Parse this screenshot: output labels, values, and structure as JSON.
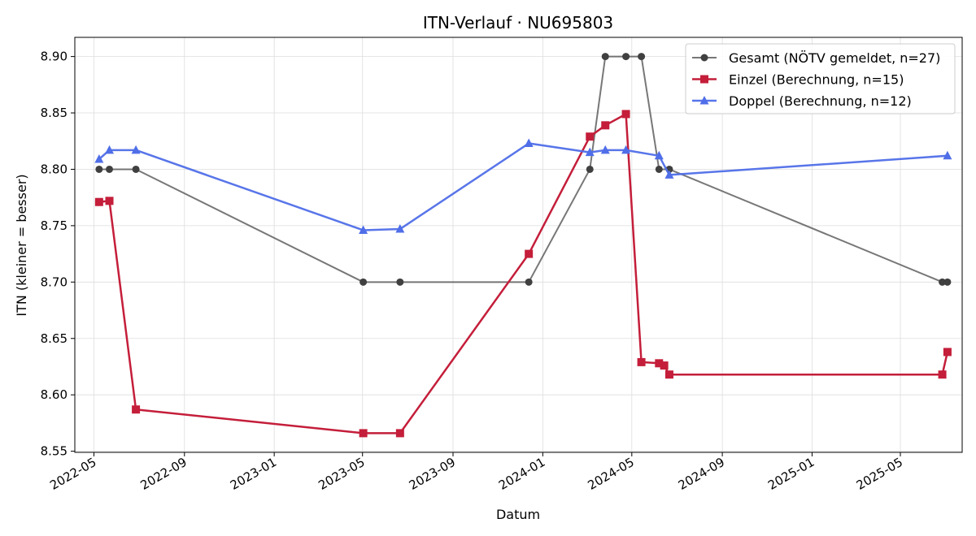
{
  "chart_data": {
    "type": "line",
    "title": "ITN-Verlauf · NU695803",
    "xlabel": "Datum",
    "ylabel": "ITN  (kleiner = besser)",
    "x_type": "date",
    "xlim": [
      "2022-04-05",
      "2025-07-24"
    ],
    "ylim": [
      8.549,
      8.917
    ],
    "grid": true,
    "legend_position": "top-right",
    "x_ticks": [
      "2022-05",
      "2022-09",
      "2023-01",
      "2023-05",
      "2023-09",
      "2024-01",
      "2024-05",
      "2024-09",
      "2025-01",
      "2025-05"
    ],
    "x_tick_dates": [
      "2022-05-01",
      "2022-09-01",
      "2023-01-01",
      "2023-05-01",
      "2023-09-01",
      "2024-01-01",
      "2024-05-01",
      "2024-09-01",
      "2025-01-01",
      "2025-05-01"
    ],
    "y_ticks": [
      "8.55",
      "8.60",
      "8.65",
      "8.70",
      "8.75",
      "8.80",
      "8.85",
      "8.90"
    ],
    "series": [
      {
        "name": "Gesamt (NÖTV gemeldet, n=27)",
        "color": "#555555",
        "marker": "circle",
        "points": [
          {
            "x": "2022-05-08",
            "y": 8.8
          },
          {
            "x": "2022-05-22",
            "y": 8.8
          },
          {
            "x": "2022-06-27",
            "y": 8.8
          },
          {
            "x": "2023-05-02",
            "y": 8.7
          },
          {
            "x": "2023-06-21",
            "y": 8.7
          },
          {
            "x": "2023-12-13",
            "y": 8.7
          },
          {
            "x": "2024-03-05",
            "y": 8.8
          },
          {
            "x": "2024-03-26",
            "y": 8.9
          },
          {
            "x": "2024-04-23",
            "y": 8.9
          },
          {
            "x": "2024-05-14",
            "y": 8.9
          },
          {
            "x": "2024-06-07",
            "y": 8.8
          },
          {
            "x": "2024-06-21",
            "y": 8.8
          },
          {
            "x": "2025-06-27",
            "y": 8.7
          },
          {
            "x": "2025-07-04",
            "y": 8.7
          }
        ]
      },
      {
        "name": "Einzel (Berechnung, n=15)",
        "color": "#c41e3a",
        "marker": "square",
        "points": [
          {
            "x": "2022-05-08",
            "y": 8.771
          },
          {
            "x": "2022-05-22",
            "y": 8.772
          },
          {
            "x": "2022-06-27",
            "y": 8.587
          },
          {
            "x": "2023-05-02",
            "y": 8.566
          },
          {
            "x": "2023-06-21",
            "y": 8.566
          },
          {
            "x": "2023-12-13",
            "y": 8.725
          },
          {
            "x": "2024-03-05",
            "y": 8.829
          },
          {
            "x": "2024-03-26",
            "y": 8.839
          },
          {
            "x": "2024-04-23",
            "y": 8.849
          },
          {
            "x": "2024-05-14",
            "y": 8.629
          },
          {
            "x": "2024-06-07",
            "y": 8.628
          },
          {
            "x": "2024-06-14",
            "y": 8.626
          },
          {
            "x": "2024-06-21",
            "y": 8.618
          },
          {
            "x": "2025-06-27",
            "y": 8.618
          },
          {
            "x": "2025-07-04",
            "y": 8.638
          }
        ]
      },
      {
        "name": "Doppel (Berechnung, n=12)",
        "color": "#4f6ee8",
        "marker": "triangle",
        "points": [
          {
            "x": "2022-05-08",
            "y": 8.809
          },
          {
            "x": "2022-05-22",
            "y": 8.817
          },
          {
            "x": "2022-06-27",
            "y": 8.817
          },
          {
            "x": "2023-05-02",
            "y": 8.746
          },
          {
            "x": "2023-06-21",
            "y": 8.747
          },
          {
            "x": "2023-12-13",
            "y": 8.823
          },
          {
            "x": "2024-03-05",
            "y": 8.815
          },
          {
            "x": "2024-03-26",
            "y": 8.817
          },
          {
            "x": "2024-04-23",
            "y": 8.817
          },
          {
            "x": "2024-06-07",
            "y": 8.812
          },
          {
            "x": "2024-06-21",
            "y": 8.795
          },
          {
            "x": "2025-07-04",
            "y": 8.812
          }
        ]
      }
    ]
  }
}
